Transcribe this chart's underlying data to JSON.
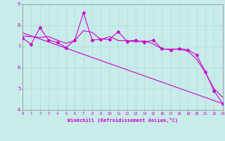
{
  "background_color": "#c8ece9",
  "grid_color": "#aadddd",
  "line_color": "#cc00cc",
  "xlabel": "Windchill (Refroidissement éolien,°C)",
  "xlim": [
    0,
    23
  ],
  "ylim": [
    4,
    9
  ],
  "yticks": [
    4,
    5,
    6,
    7,
    8,
    9
  ],
  "xticks": [
    0,
    1,
    2,
    3,
    4,
    5,
    6,
    7,
    8,
    9,
    10,
    11,
    12,
    13,
    14,
    15,
    16,
    17,
    18,
    19,
    20,
    21,
    22,
    23
  ],
  "series1_x": [
    0,
    1,
    2,
    3,
    4,
    5,
    6,
    7,
    8,
    9,
    10,
    11,
    12,
    13,
    14,
    15,
    16,
    17,
    18,
    19,
    20,
    21,
    22,
    23
  ],
  "series1_y": [
    7.4,
    7.1,
    7.9,
    7.3,
    7.2,
    6.95,
    7.3,
    8.6,
    7.3,
    7.35,
    7.35,
    7.7,
    7.25,
    7.3,
    7.2,
    7.3,
    6.9,
    6.85,
    6.9,
    6.85,
    6.6,
    5.8,
    4.9,
    4.3
  ],
  "smooth_y": [
    7.5,
    7.47,
    7.43,
    7.47,
    7.3,
    7.15,
    7.28,
    7.75,
    7.67,
    7.33,
    7.47,
    7.28,
    7.28,
    7.22,
    7.27,
    7.13,
    6.88,
    6.88,
    6.87,
    6.78,
    6.4,
    5.77,
    5.0,
    4.6
  ],
  "trend_x": [
    0,
    23
  ],
  "trend_y": [
    7.65,
    4.3
  ]
}
